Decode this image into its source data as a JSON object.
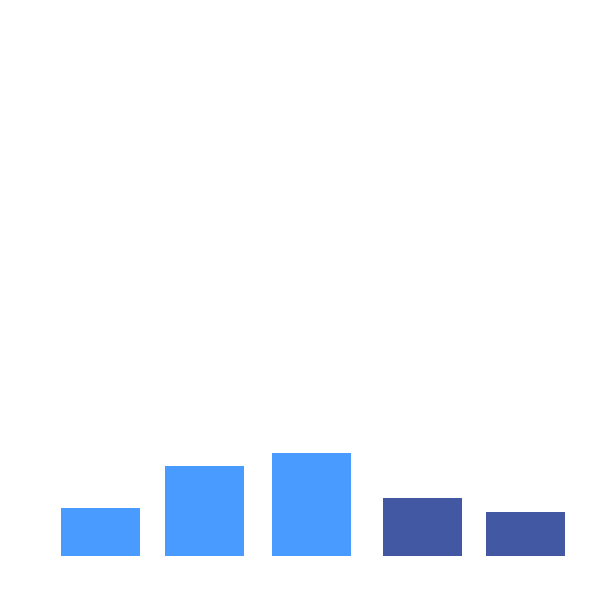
{
  "chart_data": {
    "type": "bar",
    "categories": [
      "",
      "",
      "",
      "",
      ""
    ],
    "values": [
      48,
      90,
      103,
      58,
      44
    ],
    "ylim": [
      0,
      340
    ],
    "grid": false,
    "legend": "none",
    "bar_colors": [
      "#4a9bff",
      "#4a9bff",
      "#4a9bff",
      "#4358a3",
      "#4358a3"
    ],
    "background": "#ffffff"
  }
}
